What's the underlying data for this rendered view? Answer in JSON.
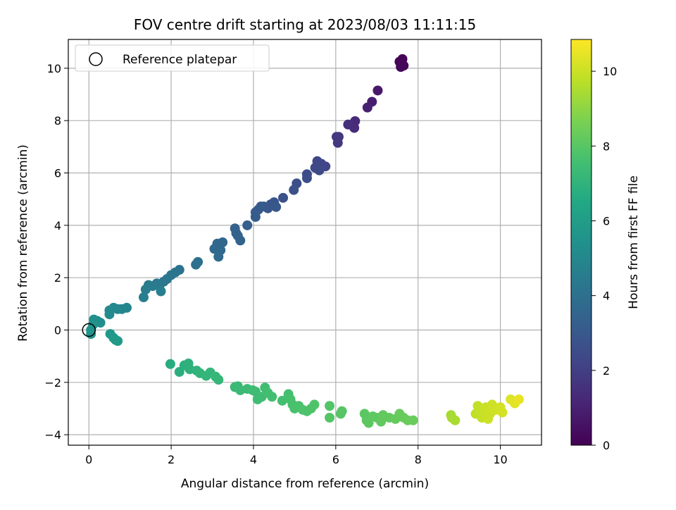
{
  "chart_data": {
    "type": "scatter",
    "title": "FOV centre drift starting at 2023/08/03 11:11:15",
    "xlabel": "Angular distance from reference (arcmin)",
    "ylabel": "Rotation from reference (arcmin)",
    "xlim": [
      -0.5,
      11
    ],
    "ylim": [
      -4.4,
      11.1
    ],
    "x_ticks": [
      0,
      2,
      4,
      6,
      8,
      10
    ],
    "y_ticks": [
      -4,
      -2,
      0,
      2,
      4,
      6,
      8,
      10
    ],
    "grid": true,
    "legend": {
      "position": "top-left",
      "entries": [
        "Reference platepar"
      ]
    },
    "reference_point": {
      "x": 0,
      "y": 0
    },
    "colorbar": {
      "label": "Hours from first FF file",
      "range": [
        0,
        10.85
      ],
      "ticks": [
        0,
        2,
        4,
        6,
        8,
        10
      ],
      "colormap": "viridis"
    },
    "points": [
      {
        "x": 7.55,
        "y": 10.25,
        "t": 0.0
      },
      {
        "x": 7.62,
        "y": 10.35,
        "t": 0.05
      },
      {
        "x": 7.65,
        "y": 10.1,
        "t": 0.1
      },
      {
        "x": 7.6,
        "y": 10.2,
        "t": 0.15
      },
      {
        "x": 7.58,
        "y": 10.05,
        "t": 0.2
      },
      {
        "x": 7.02,
        "y": 9.15,
        "t": 0.7
      },
      {
        "x": 6.88,
        "y": 8.72,
        "t": 0.9
      },
      {
        "x": 6.77,
        "y": 8.5,
        "t": 1.0
      },
      {
        "x": 6.47,
        "y": 7.98,
        "t": 1.3
      },
      {
        "x": 6.45,
        "y": 7.72,
        "t": 1.35
      },
      {
        "x": 6.3,
        "y": 7.85,
        "t": 1.45
      },
      {
        "x": 6.07,
        "y": 7.38,
        "t": 1.7
      },
      {
        "x": 6.02,
        "y": 7.38,
        "t": 1.75
      },
      {
        "x": 6.05,
        "y": 7.15,
        "t": 1.8
      },
      {
        "x": 5.75,
        "y": 6.25,
        "t": 2.2
      },
      {
        "x": 5.65,
        "y": 6.35,
        "t": 2.25
      },
      {
        "x": 5.55,
        "y": 6.45,
        "t": 2.3
      },
      {
        "x": 5.5,
        "y": 6.2,
        "t": 2.35
      },
      {
        "x": 5.6,
        "y": 6.1,
        "t": 2.4
      },
      {
        "x": 5.3,
        "y": 5.95,
        "t": 2.5
      },
      {
        "x": 5.3,
        "y": 5.8,
        "t": 2.55
      },
      {
        "x": 5.05,
        "y": 5.6,
        "t": 2.6
      },
      {
        "x": 4.98,
        "y": 5.35,
        "t": 2.65
      },
      {
        "x": 4.72,
        "y": 5.05,
        "t": 2.75
      },
      {
        "x": 4.5,
        "y": 4.88,
        "t": 2.85
      },
      {
        "x": 4.42,
        "y": 4.8,
        "t": 2.9
      },
      {
        "x": 4.35,
        "y": 4.65,
        "t": 2.92
      },
      {
        "x": 4.55,
        "y": 4.7,
        "t": 2.95
      },
      {
        "x": 4.25,
        "y": 4.72,
        "t": 3.0
      },
      {
        "x": 4.18,
        "y": 4.72,
        "t": 3.02
      },
      {
        "x": 4.12,
        "y": 4.6,
        "t": 3.05
      },
      {
        "x": 4.05,
        "y": 4.5,
        "t": 3.08
      },
      {
        "x": 4.05,
        "y": 4.32,
        "t": 3.12
      },
      {
        "x": 3.85,
        "y": 4.0,
        "t": 3.25
      },
      {
        "x": 3.55,
        "y": 3.88,
        "t": 3.35
      },
      {
        "x": 3.58,
        "y": 3.7,
        "t": 3.4
      },
      {
        "x": 3.62,
        "y": 3.6,
        "t": 3.42
      },
      {
        "x": 3.68,
        "y": 3.42,
        "t": 3.45
      },
      {
        "x": 3.25,
        "y": 3.35,
        "t": 3.55
      },
      {
        "x": 3.12,
        "y": 3.3,
        "t": 3.6
      },
      {
        "x": 3.05,
        "y": 3.1,
        "t": 3.65
      },
      {
        "x": 3.2,
        "y": 3.05,
        "t": 3.7
      },
      {
        "x": 3.15,
        "y": 2.8,
        "t": 3.75
      },
      {
        "x": 2.65,
        "y": 2.6,
        "t": 3.95
      },
      {
        "x": 2.6,
        "y": 2.5,
        "t": 4.0
      },
      {
        "x": 2.2,
        "y": 2.3,
        "t": 4.1
      },
      {
        "x": 2.1,
        "y": 2.2,
        "t": 4.15
      },
      {
        "x": 2.0,
        "y": 2.1,
        "t": 4.2
      },
      {
        "x": 1.9,
        "y": 1.95,
        "t": 4.25
      },
      {
        "x": 1.82,
        "y": 1.85,
        "t": 4.3
      },
      {
        "x": 1.72,
        "y": 1.72,
        "t": 4.35
      },
      {
        "x": 1.65,
        "y": 1.78,
        "t": 4.4
      },
      {
        "x": 1.55,
        "y": 1.68,
        "t": 4.45
      },
      {
        "x": 1.45,
        "y": 1.72,
        "t": 4.5
      },
      {
        "x": 1.38,
        "y": 1.55,
        "t": 4.55
      },
      {
        "x": 1.33,
        "y": 1.25,
        "t": 4.6
      },
      {
        "x": 1.75,
        "y": 1.48,
        "t": 4.6
      },
      {
        "x": 0.92,
        "y": 0.85,
        "t": 4.9
      },
      {
        "x": 0.8,
        "y": 0.8,
        "t": 4.95
      },
      {
        "x": 0.7,
        "y": 0.8,
        "t": 5.0
      },
      {
        "x": 0.6,
        "y": 0.85,
        "t": 5.05
      },
      {
        "x": 0.5,
        "y": 0.75,
        "t": 5.1
      },
      {
        "x": 0.5,
        "y": 0.6,
        "t": 5.15
      },
      {
        "x": 0.28,
        "y": 0.28,
        "t": 5.3
      },
      {
        "x": 0.2,
        "y": 0.35,
        "t": 5.35
      },
      {
        "x": 0.12,
        "y": 0.4,
        "t": 5.4
      },
      {
        "x": 0.1,
        "y": 0.2,
        "t": 5.45
      },
      {
        "x": 0.05,
        "y": 0.0,
        "t": 5.5
      },
      {
        "x": 0.05,
        "y": -0.15,
        "t": 5.55
      },
      {
        "x": 0.52,
        "y": -0.15,
        "t": 5.75
      },
      {
        "x": 0.6,
        "y": -0.3,
        "t": 5.8
      },
      {
        "x": 0.65,
        "y": -0.38,
        "t": 5.85
      },
      {
        "x": 0.7,
        "y": -0.42,
        "t": 5.9
      },
      {
        "x": 1.98,
        "y": -1.3,
        "t": 6.7
      },
      {
        "x": 2.2,
        "y": -1.6,
        "t": 6.8
      },
      {
        "x": 2.32,
        "y": -1.35,
        "t": 6.85
      },
      {
        "x": 2.42,
        "y": -1.28,
        "t": 6.9
      },
      {
        "x": 2.45,
        "y": -1.5,
        "t": 6.95
      },
      {
        "x": 2.62,
        "y": -1.55,
        "t": 7.0
      },
      {
        "x": 2.7,
        "y": -1.65,
        "t": 7.05
      },
      {
        "x": 2.85,
        "y": -1.75,
        "t": 7.1
      },
      {
        "x": 2.95,
        "y": -1.62,
        "t": 7.12
      },
      {
        "x": 3.08,
        "y": -1.78,
        "t": 7.15
      },
      {
        "x": 3.15,
        "y": -1.9,
        "t": 7.18
      },
      {
        "x": 3.55,
        "y": -2.18,
        "t": 7.3
      },
      {
        "x": 3.62,
        "y": -2.15,
        "t": 7.32
      },
      {
        "x": 3.68,
        "y": -2.3,
        "t": 7.35
      },
      {
        "x": 3.85,
        "y": -2.25,
        "t": 7.38
      },
      {
        "x": 3.98,
        "y": -2.3,
        "t": 7.4
      },
      {
        "x": 4.05,
        "y": -2.35,
        "t": 7.42
      },
      {
        "x": 4.1,
        "y": -2.65,
        "t": 7.45
      },
      {
        "x": 4.2,
        "y": -2.55,
        "t": 7.48
      },
      {
        "x": 4.28,
        "y": -2.2,
        "t": 7.5
      },
      {
        "x": 4.35,
        "y": -2.4,
        "t": 7.52
      },
      {
        "x": 4.45,
        "y": -2.55,
        "t": 7.55
      },
      {
        "x": 4.7,
        "y": -2.7,
        "t": 7.6
      },
      {
        "x": 4.85,
        "y": -2.45,
        "t": 7.62
      },
      {
        "x": 4.9,
        "y": -2.65,
        "t": 7.65
      },
      {
        "x": 4.95,
        "y": -2.85,
        "t": 7.68
      },
      {
        "x": 5.0,
        "y": -3.0,
        "t": 7.7
      },
      {
        "x": 5.1,
        "y": -2.9,
        "t": 7.72
      },
      {
        "x": 5.2,
        "y": -3.05,
        "t": 7.75
      },
      {
        "x": 5.3,
        "y": -3.1,
        "t": 7.78
      },
      {
        "x": 5.4,
        "y": -3.0,
        "t": 7.8
      },
      {
        "x": 5.48,
        "y": -2.85,
        "t": 7.82
      },
      {
        "x": 5.85,
        "y": -2.9,
        "t": 7.9
      },
      {
        "x": 5.85,
        "y": -3.35,
        "t": 7.92
      },
      {
        "x": 6.15,
        "y": -3.1,
        "t": 7.95
      },
      {
        "x": 6.12,
        "y": -3.2,
        "t": 7.97
      },
      {
        "x": 6.7,
        "y": -3.2,
        "t": 8.05
      },
      {
        "x": 6.75,
        "y": -3.45,
        "t": 8.08
      },
      {
        "x": 6.8,
        "y": -3.55,
        "t": 8.1
      },
      {
        "x": 6.9,
        "y": -3.3,
        "t": 8.12
      },
      {
        "x": 7.0,
        "y": -3.35,
        "t": 8.15
      },
      {
        "x": 7.1,
        "y": -3.5,
        "t": 8.18
      },
      {
        "x": 7.15,
        "y": -3.25,
        "t": 8.2
      },
      {
        "x": 7.3,
        "y": -3.35,
        "t": 8.22
      },
      {
        "x": 7.45,
        "y": -3.4,
        "t": 8.25
      },
      {
        "x": 7.55,
        "y": -3.2,
        "t": 8.28
      },
      {
        "x": 7.65,
        "y": -3.35,
        "t": 8.3
      },
      {
        "x": 7.75,
        "y": -3.45,
        "t": 8.32
      },
      {
        "x": 7.88,
        "y": -3.45,
        "t": 8.35
      },
      {
        "x": 8.8,
        "y": -3.25,
        "t": 9.4
      },
      {
        "x": 8.82,
        "y": -3.35,
        "t": 9.42
      },
      {
        "x": 8.9,
        "y": -3.45,
        "t": 9.45
      },
      {
        "x": 9.4,
        "y": -3.2,
        "t": 9.8
      },
      {
        "x": 9.45,
        "y": -2.9,
        "t": 9.85
      },
      {
        "x": 9.5,
        "y": -3.05,
        "t": 9.88
      },
      {
        "x": 9.55,
        "y": -3.35,
        "t": 9.9
      },
      {
        "x": 9.6,
        "y": -3.1,
        "t": 9.93
      },
      {
        "x": 9.65,
        "y": -2.95,
        "t": 9.96
      },
      {
        "x": 9.7,
        "y": -3.4,
        "t": 10.0
      },
      {
        "x": 9.75,
        "y": -3.2,
        "t": 10.02
      },
      {
        "x": 9.8,
        "y": -2.85,
        "t": 10.05
      },
      {
        "x": 9.88,
        "y": -3.05,
        "t": 10.08
      },
      {
        "x": 10.0,
        "y": -2.95,
        "t": 10.12
      },
      {
        "x": 10.05,
        "y": -3.15,
        "t": 10.15
      },
      {
        "x": 10.25,
        "y": -2.65,
        "t": 10.3
      },
      {
        "x": 10.35,
        "y": -2.8,
        "t": 10.4
      },
      {
        "x": 10.45,
        "y": -2.65,
        "t": 10.5
      }
    ]
  }
}
